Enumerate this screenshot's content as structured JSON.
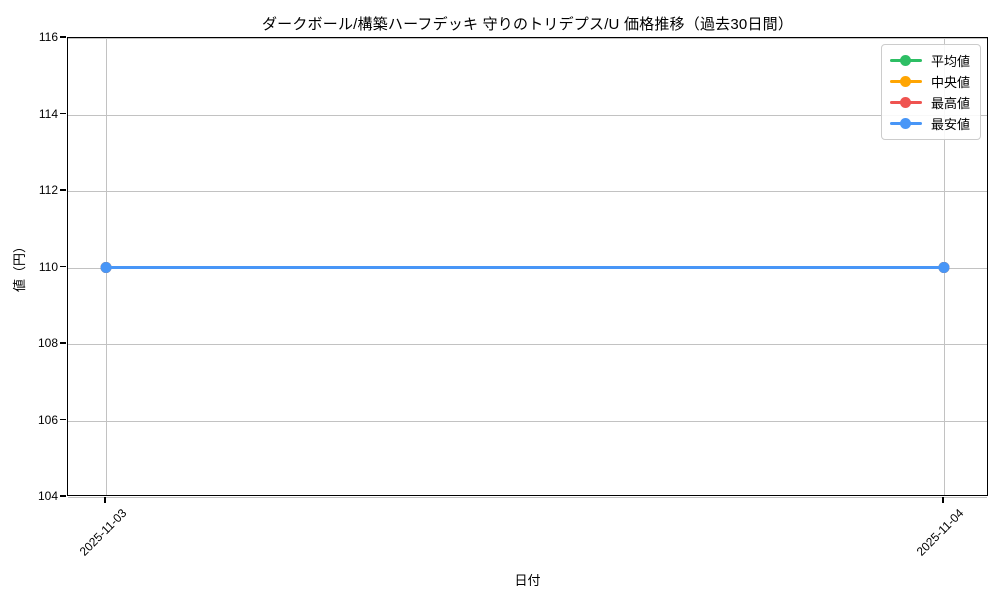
{
  "figure": {
    "background": "#ffffff",
    "grid_color": "#c2c2c2",
    "spine_color": "#000000"
  },
  "chart_data": {
    "type": "line",
    "title": "ダークボール/構築ハーフデッキ 守りのトリデプス/U 価格推移（過去30日間）",
    "xlabel": "日付",
    "ylabel": "値（円）",
    "x": [
      "2025-11-03",
      "2025-11-04"
    ],
    "series": [
      {
        "name": "平均値",
        "color": "#2dbe64",
        "values": [
          110,
          110
        ]
      },
      {
        "name": "中央値",
        "color": "#ffa502",
        "values": [
          110,
          110
        ]
      },
      {
        "name": "最高値",
        "color": "#ef5350",
        "values": [
          110,
          110
        ]
      },
      {
        "name": "最安値",
        "color": "#4896f7",
        "values": [
          110,
          110
        ]
      }
    ],
    "ylim": [
      104,
      116
    ],
    "yticks": [
      104,
      106,
      108,
      110,
      112,
      114,
      116
    ],
    "grid": true,
    "legend_position": "upper right",
    "legend_entries": [
      "平均値",
      "中央値",
      "最高値",
      "最安値"
    ]
  }
}
